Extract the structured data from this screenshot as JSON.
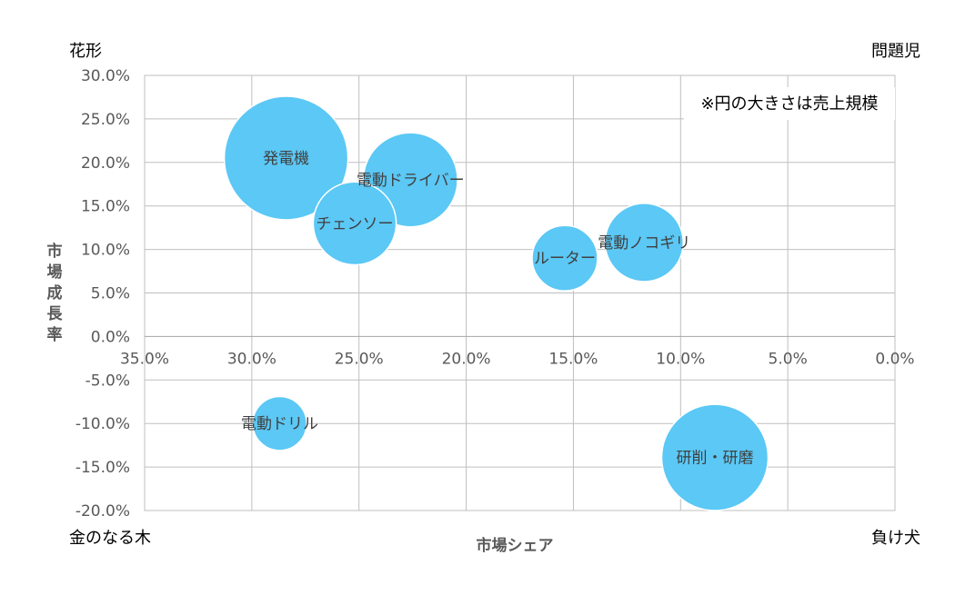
{
  "corners": {
    "top_left": "花形",
    "top_right": "問題児",
    "bottom_left": "金のなる木",
    "bottom_right": "負け犬"
  },
  "note": "※円の大きさは売上規模",
  "chart_data": {
    "type": "bubble",
    "xlabel": "市場シェア",
    "ylabel": "市場成長率",
    "x_reversed": true,
    "xlim": [
      0,
      35
    ],
    "ylim": [
      -20,
      30
    ],
    "x_ticks": [
      "35.0%",
      "30.0%",
      "25.0%",
      "20.0%",
      "15.0%",
      "10.0%",
      "5.0%",
      "0.0%"
    ],
    "x_tick_values": [
      35,
      30,
      25,
      20,
      15,
      10,
      5,
      0
    ],
    "y_ticks": [
      "30.0%",
      "25.0%",
      "20.0%",
      "15.0%",
      "10.0%",
      "5.0%",
      "0.0%",
      "-5.0%",
      "-10.0%",
      "-15.0%",
      "-20.0%"
    ],
    "y_tick_values": [
      30,
      25,
      20,
      15,
      10,
      5,
      0,
      -5,
      -10,
      -15,
      -20
    ],
    "grid": true,
    "bubble_color": "#5BC8F5",
    "points": [
      {
        "label": "発電機",
        "x": 28.4,
        "y": 20.5,
        "size": 100
      },
      {
        "label": "電動ドライバー",
        "x": 22.6,
        "y": 18.0,
        "size": 58
      },
      {
        "label": "チェンソー",
        "x": 25.2,
        "y": 13.0,
        "size": 45
      },
      {
        "label": "ルーター",
        "x": 15.4,
        "y": 9.0,
        "size": 28
      },
      {
        "label": "電動ノコギリ",
        "x": 11.7,
        "y": 10.8,
        "size": 40
      },
      {
        "label": "電動ドリル",
        "x": 28.7,
        "y": -10.0,
        "size": 19
      },
      {
        "label": "研削・研磨",
        "x": 8.4,
        "y": -13.9,
        "size": 74
      }
    ]
  }
}
